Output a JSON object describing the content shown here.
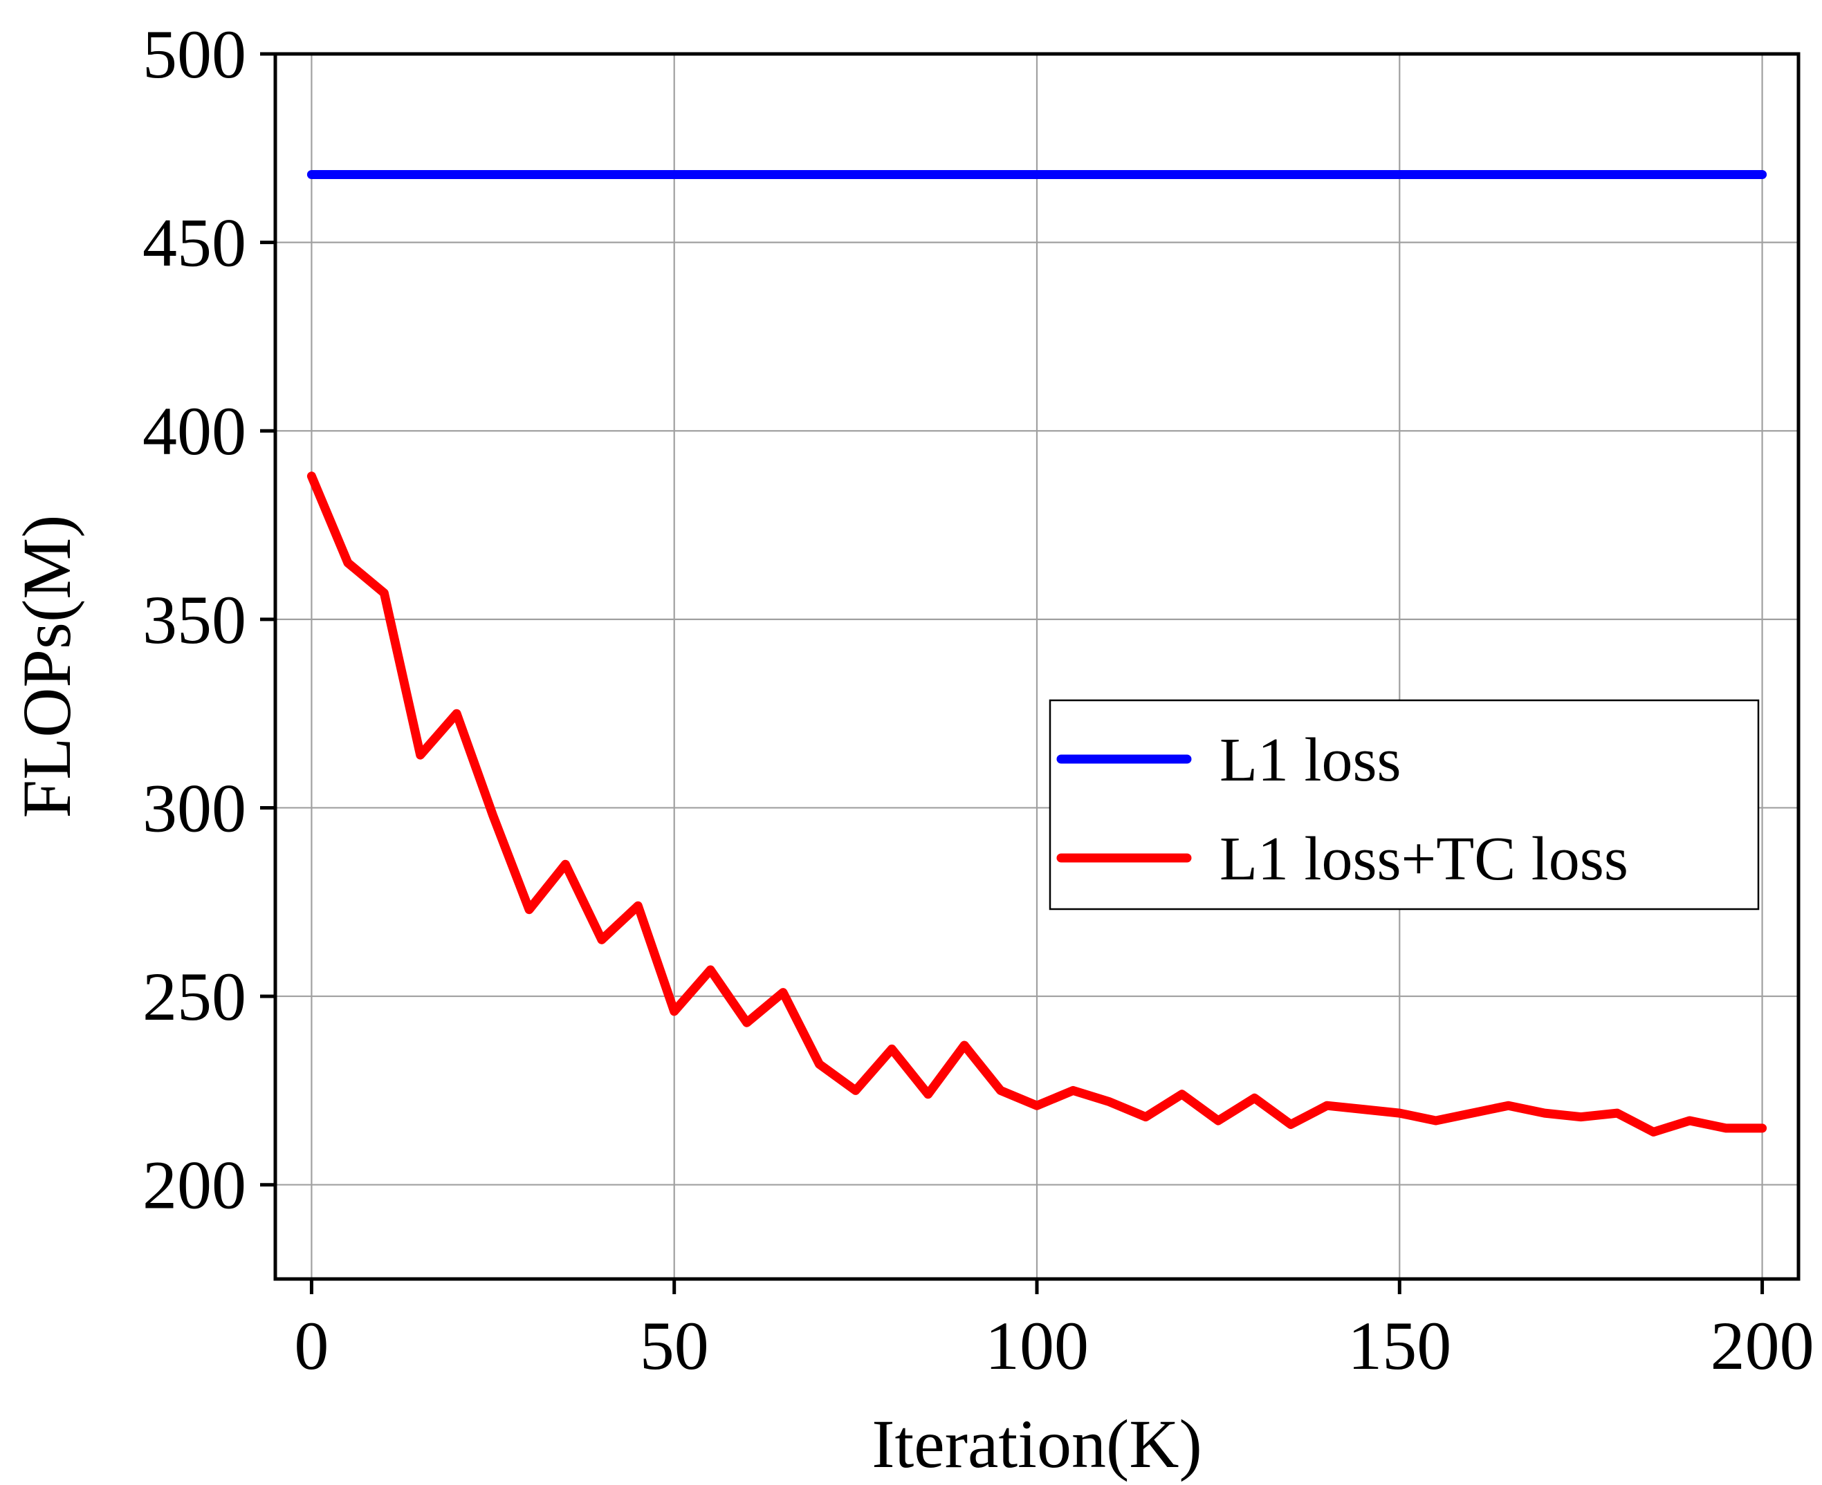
{
  "chart_data": {
    "type": "line",
    "title": "",
    "xlabel": "Iteration(K)",
    "ylabel": "FLOPs(M)",
    "xlim": [
      -5,
      205
    ],
    "ylim": [
      175,
      500
    ],
    "xticks": [
      0,
      50,
      100,
      150,
      200
    ],
    "yticks": [
      200,
      250,
      300,
      350,
      400,
      450,
      500
    ],
    "grid": true,
    "legend_position": "center-right",
    "series": [
      {
        "name": "L1 loss",
        "color": "#0000ff",
        "x": [
          0,
          200
        ],
        "y": [
          468,
          468
        ]
      },
      {
        "name": "L1 loss+TC loss",
        "color": "#ff0000",
        "x": [
          0,
          5,
          10,
          15,
          20,
          25,
          30,
          35,
          40,
          45,
          50,
          55,
          60,
          65,
          70,
          75,
          80,
          85,
          90,
          95,
          100,
          105,
          110,
          115,
          120,
          125,
          130,
          135,
          140,
          145,
          150,
          155,
          160,
          165,
          170,
          175,
          180,
          185,
          190,
          195,
          200
        ],
        "y": [
          388,
          365,
          357,
          314,
          325,
          298,
          273,
          285,
          265,
          274,
          246,
          257,
          243,
          251,
          232,
          225,
          236,
          224,
          237,
          225,
          221,
          225,
          222,
          218,
          224,
          217,
          223,
          216,
          221,
          220,
          219,
          217,
          219,
          221,
          219,
          218,
          219,
          214,
          217,
          215,
          215
        ]
      }
    ]
  }
}
